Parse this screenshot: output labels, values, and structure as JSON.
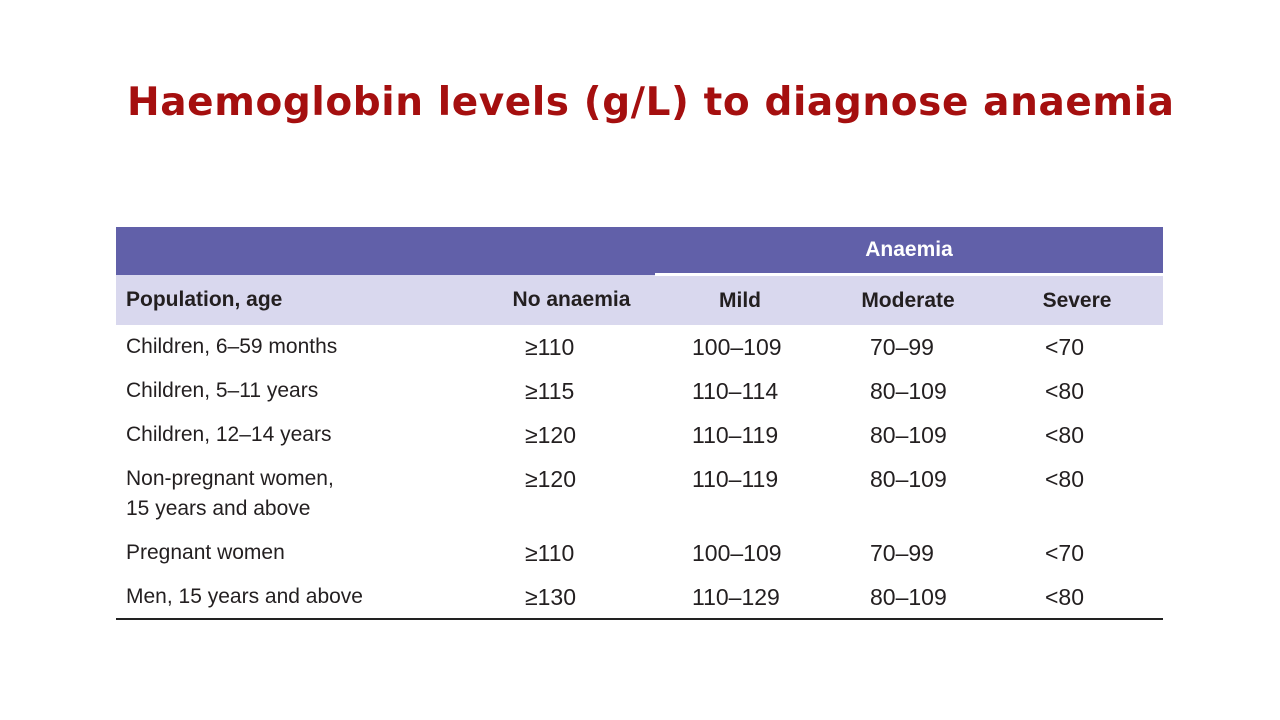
{
  "title": "Haemoglobin levels (g/L) to diagnose anaemia",
  "table": {
    "group_header": "Anaemia",
    "columns": [
      "Population, age",
      "No anaemia",
      "Mild",
      "Moderate",
      "Severe"
    ],
    "rows": [
      {
        "population": "Children, 6–59 months",
        "no_anaemia": "≥110",
        "mild": "100–109",
        "moderate": "70–99",
        "severe": "<70"
      },
      {
        "population": "Children, 5–11 years",
        "no_anaemia": "≥115",
        "mild": "110–114",
        "moderate": "80–109",
        "severe": "<80"
      },
      {
        "population": "Children, 12–14 years",
        "no_anaemia": "≥120",
        "mild": "110–119",
        "moderate": "80–109",
        "severe": "<80"
      },
      {
        "population": "Non-pregnant women, 15 years and above",
        "no_anaemia": "≥120",
        "mild": "110–119",
        "moderate": "80–109",
        "severe": "<80"
      },
      {
        "population": "Pregnant women",
        "no_anaemia": "≥110",
        "mild": "100–109",
        "moderate": "70–99",
        "severe": "<70"
      },
      {
        "population": "Men, 15 years and above",
        "no_anaemia": "≥130",
        "mild": "110–129",
        "moderate": "80–109",
        "severe": "<80"
      }
    ]
  },
  "colors": {
    "title": "#a50f0f",
    "group_header_bg": "#6160a9",
    "column_header_bg": "#d9d8ee",
    "text": "#231f20"
  }
}
